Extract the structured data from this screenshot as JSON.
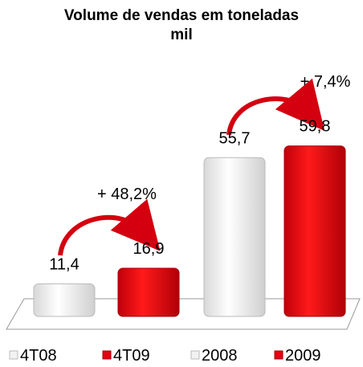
{
  "chart_data": {
    "type": "bar",
    "title": "Volume de vendas em toneladas mil",
    "categories": [
      "4T08",
      "4T09",
      "2008",
      "2009"
    ],
    "values": [
      11.4,
      16.9,
      55.7,
      59.8
    ],
    "value_labels": [
      "11,4",
      "16,9",
      "55,7",
      "59,8"
    ],
    "colors": [
      "#f2f2f2",
      "#e60010",
      "#f2f2f2",
      "#e60010"
    ],
    "annotations": [
      "+ 48,2%",
      "+ 7,4%"
    ]
  }
}
